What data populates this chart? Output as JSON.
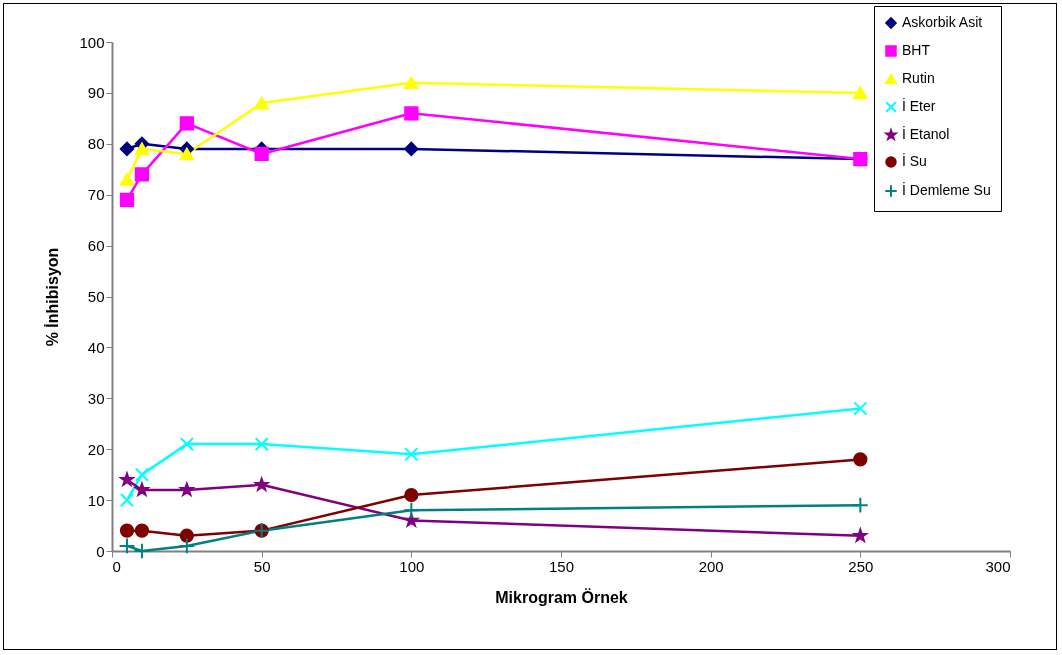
{
  "chart_data": {
    "type": "line",
    "xlabel": "Mikrogram Örnek",
    "ylabel": "% İnhibisyon",
    "x": [
      5,
      10,
      25,
      50,
      100,
      250
    ],
    "xlim": [
      0,
      300
    ],
    "xticks": [
      0,
      50,
      100,
      150,
      200,
      250,
      300
    ],
    "ylim": [
      0,
      100
    ],
    "yticks": [
      0,
      10,
      20,
      30,
      40,
      50,
      60,
      70,
      80,
      90,
      100
    ],
    "grid": false,
    "legend": "top right",
    "line_style": "solid",
    "series": [
      {
        "name": "Askorbik Asit",
        "color": "#000080",
        "marker": "diamond",
        "values": [
          79,
          80,
          79,
          79,
          79,
          77
        ]
      },
      {
        "name": "BHT",
        "color": "#ff00ff",
        "marker": "square",
        "values": [
          69,
          74,
          84,
          78,
          86,
          77
        ]
      },
      {
        "name": "Rutin",
        "color": "#ffff00",
        "marker": "triangle",
        "values": [
          73,
          79,
          78,
          88,
          92,
          90
        ]
      },
      {
        "name": "İ Eter",
        "color": "#00ffff",
        "marker": "cross",
        "values": [
          10,
          15,
          21,
          21,
          19,
          28
        ]
      },
      {
        "name": "İ Etanol",
        "color": "#800080",
        "marker": "star",
        "values": [
          14,
          12,
          12,
          13,
          6,
          3
        ]
      },
      {
        "name": "İ Su",
        "color": "#800000",
        "marker": "circle",
        "values": [
          4,
          4,
          3,
          4,
          11,
          18
        ]
      },
      {
        "name": "İ Demleme Su",
        "color": "#008080",
        "marker": "plus",
        "values": [
          1,
          0,
          1,
          4,
          8,
          9
        ]
      }
    ]
  }
}
